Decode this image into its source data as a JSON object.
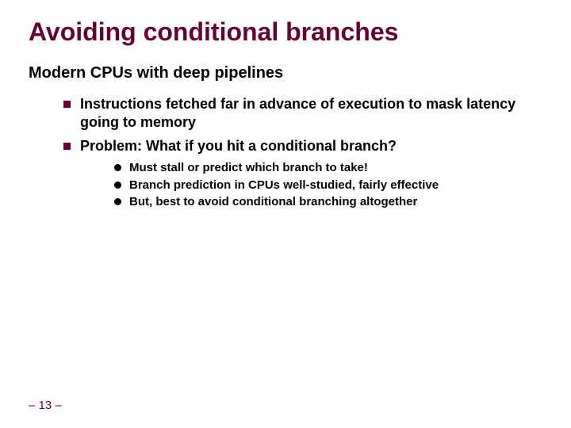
{
  "title": "Avoiding conditional branches",
  "subtitle": "Modern CPUs with deep pipelines",
  "bullets_l1": [
    "Instructions fetched far in advance of execution to mask latency going to memory",
    "Problem: What if you hit a conditional branch?"
  ],
  "bullets_l2": [
    "Must stall or predict which branch to take!",
    "Branch prediction in CPUs well-studied, fairly effective",
    "But, best to avoid conditional branching altogether"
  ],
  "page_number": "– 13 –",
  "colors": {
    "title": "#660033",
    "marker": "#660033",
    "text": "#000000",
    "background": "#ffffff"
  }
}
